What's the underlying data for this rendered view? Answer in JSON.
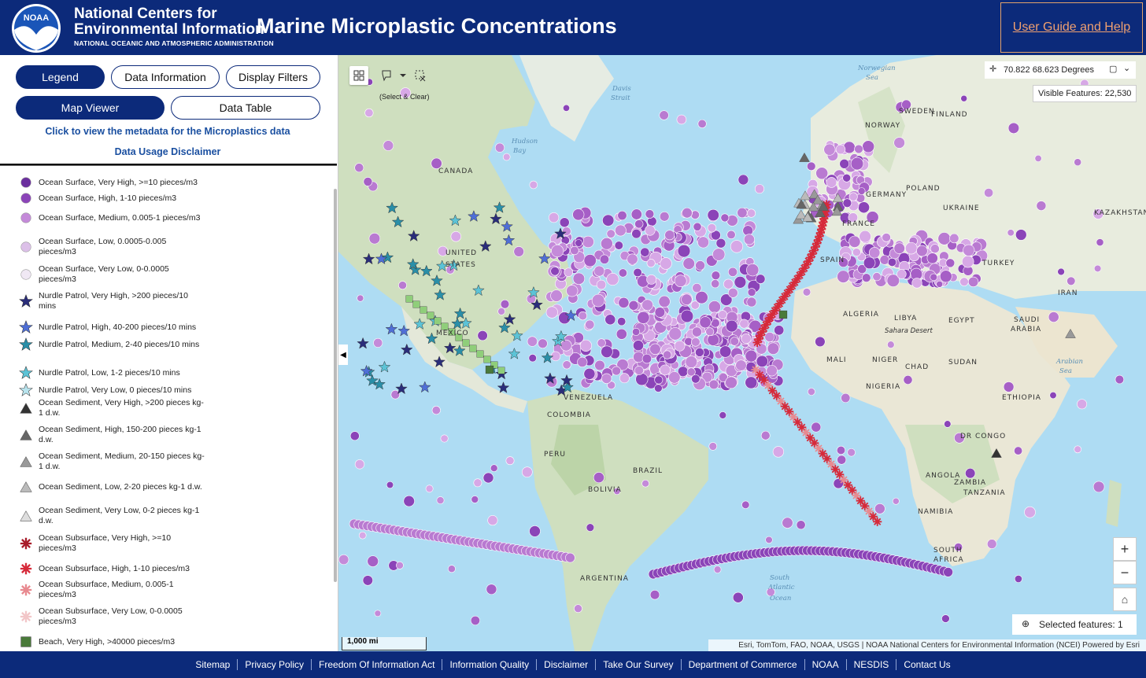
{
  "header": {
    "org_line1": "National Centers for",
    "org_line2": "Environmental Information",
    "org_sub": "NATIONAL OCEANIC AND ATMOSPHERIC ADMINISTRATION",
    "logo_text": "NOAA",
    "app_title": "Marine Microplastic Concentrations",
    "guide_link": "User Guide and Help"
  },
  "panel": {
    "tabs_top": [
      {
        "label": "Legend",
        "active": true
      },
      {
        "label": "Data Information",
        "active": false
      },
      {
        "label": "Display Filters",
        "active": false
      }
    ],
    "tabs_bottom": [
      {
        "label": "Map Viewer",
        "active": true
      },
      {
        "label": "Data Table",
        "active": false
      }
    ],
    "metadata_link": "Click to view the metadata for the Microplastics data",
    "disclaimer_link": "Data Usage Disclaimer"
  },
  "legend": [
    {
      "label": "Ocean Surface, Very High, >=10 pieces/m3",
      "shape": "circle",
      "color": "#6b2f9e"
    },
    {
      "label": "Ocean Surface, High, 1-10 pieces/m3",
      "shape": "circle",
      "color": "#8b44b8"
    },
    {
      "label": "Ocean Surface, Medium, 0.005-1 pieces/m3",
      "shape": "circle",
      "color": "#c48ad9"
    },
    {
      "label": "Ocean Surface, Low, 0.0005-0.005 pieces/m3",
      "shape": "circle",
      "color": "#dcc0e8"
    },
    {
      "label": "Ocean Surface, Very Low, 0-0.0005 pieces/m3",
      "shape": "circle",
      "color": "#f0e8f4"
    },
    {
      "label": "Nurdle Patrol, Very High, >200 pieces/10 mins",
      "shape": "star",
      "color": "#2a2d7a"
    },
    {
      "label": "Nurdle Patrol, High, 40-200 pieces/10 mins",
      "shape": "star",
      "color": "#4f6fd6"
    },
    {
      "label": "Nurdle Patrol, Medium, 2-40 pieces/10 mins",
      "shape": "star",
      "color": "#2a8fa8"
    },
    {
      "label": "Nurdle Patrol, Low, 1-2 pieces/10 mins",
      "shape": "star",
      "color": "#5cc3d6"
    },
    {
      "label": "Nurdle Patrol, Very Low, 0 pieces/10 mins",
      "shape": "star",
      "color": "#b8e4ee"
    },
    {
      "label": "Ocean Sediment, Very High, >200 pieces kg-1 d.w.",
      "shape": "triangle",
      "color": "#333333"
    },
    {
      "label": "Ocean Sediment, High, 150-200 pieces kg-1 d.w.",
      "shape": "triangle",
      "color": "#666666"
    },
    {
      "label": "Ocean Sediment, Medium, 20-150 pieces kg-1 d.w.",
      "shape": "triangle",
      "color": "#999999"
    },
    {
      "label": "Ocean Sediment, Low, 2-20 pieces kg-1 d.w.",
      "shape": "triangle",
      "color": "#bbbbbb"
    },
    {
      "label": "Ocean Sediment, Very Low, 0-2 pieces kg-1 d.w.",
      "shape": "triangle",
      "color": "#dddddd"
    },
    {
      "label": "Ocean Subsurface, Very High, >=10 pieces/m3",
      "shape": "asterisk",
      "color": "#a81c2a"
    },
    {
      "label": "Ocean Subsurface, High, 1-10 pieces/m3",
      "shape": "asterisk",
      "color": "#d62a3a"
    },
    {
      "label": "Ocean Subsurface, Medium, 0.005-1 pieces/m3",
      "shape": "asterisk",
      "color": "#e88a90"
    },
    {
      "label": "Ocean Subsurface, Very Low, 0-0.0005 pieces/m3",
      "shape": "asterisk",
      "color": "#f2c6c8"
    },
    {
      "label": "Beach, Very High, >40000 pieces/m3",
      "shape": "square",
      "color": "#4a7a3a"
    }
  ],
  "map": {
    "select_clear_label": "(Select & Clear)",
    "coordinates": "70.822 68.623 Degrees",
    "visible_features": "Visible Features: 22,530",
    "selected_features": "Selected features: 1",
    "scale_label": "1,000 mi",
    "attribution": "Esri, TomTom, FAO, NOAA, USGS | NOAA National Centers for Environmental Information (NCEI)   Powered by Esri",
    "zoom_in": "+",
    "zoom_out": "−",
    "places": [
      {
        "text": "CANADA"
      },
      {
        "text": "UNITED"
      },
      {
        "text": "STATES"
      },
      {
        "text": "MEXICO"
      },
      {
        "text": "VENEZUELA"
      },
      {
        "text": "COLOMBIA"
      },
      {
        "text": "PERU"
      },
      {
        "text": "BRAZIL"
      },
      {
        "text": "BOLIVIA"
      },
      {
        "text": "ARGENTINA"
      },
      {
        "text": "SWEDEN"
      },
      {
        "text": "FINLAND"
      },
      {
        "text": "NORWAY"
      },
      {
        "text": "POLAND"
      },
      {
        "text": "GERMANY"
      },
      {
        "text": "UKRAINE"
      },
      {
        "text": "KAZAKHSTAN"
      },
      {
        "text": "FRANCE"
      },
      {
        "text": "SPAIN"
      },
      {
        "text": "TURKEY"
      },
      {
        "text": "IRAN"
      },
      {
        "text": "ALGERIA"
      },
      {
        "text": "LIBYA"
      },
      {
        "text": "EGYPT"
      },
      {
        "text": "SAUDI"
      },
      {
        "text": "ARABIA"
      },
      {
        "text": "MALI"
      },
      {
        "text": "NIGER"
      },
      {
        "text": "CHAD"
      },
      {
        "text": "SUDAN"
      },
      {
        "text": "NIGERIA"
      },
      {
        "text": "ETHIOPIA"
      },
      {
        "text": "DR CONGO"
      },
      {
        "text": "TANZANIA"
      },
      {
        "text": "ANGOLA"
      },
      {
        "text": "ZAMBIA"
      },
      {
        "text": "NAMIBIA"
      },
      {
        "text": "SOUTH"
      },
      {
        "text": "AFRICA"
      },
      {
        "text": "Sahara Desert"
      }
    ],
    "seas": [
      {
        "text": "Hudson"
      },
      {
        "text": "Bay"
      },
      {
        "text": "Davis"
      },
      {
        "text": "Strait"
      },
      {
        "text": "Norwegian"
      },
      {
        "text": "Sea"
      },
      {
        "text": "Arabian"
      },
      {
        "text": "Sea"
      },
      {
        "text": "South"
      },
      {
        "text": "Atlantic"
      },
      {
        "text": "Ocean"
      }
    ]
  },
  "footer": {
    "links": [
      "Sitemap",
      "Privacy Policy",
      "Freedom Of Information Act",
      "Information Quality",
      "Disclaimer",
      "Take Our Survey",
      "Department of Commerce",
      "NOAA",
      "NESDIS",
      "Contact Us"
    ]
  }
}
